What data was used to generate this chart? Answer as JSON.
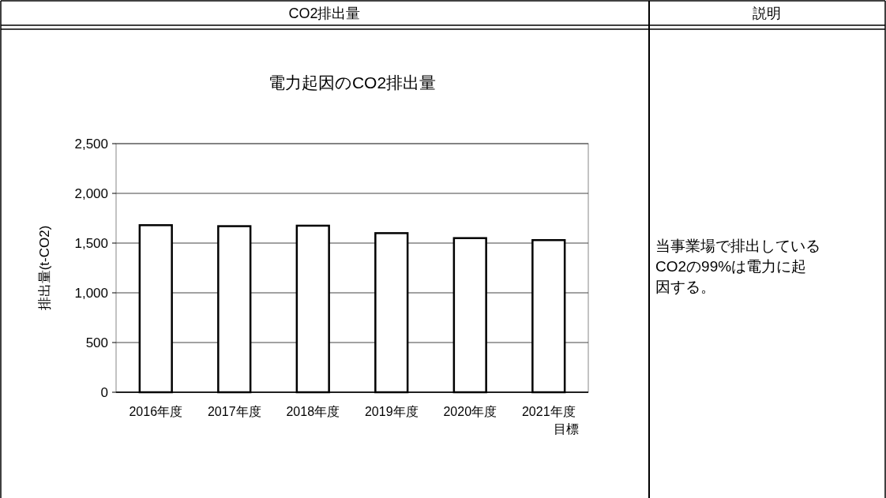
{
  "chart_data": {
    "type": "bar",
    "title": "電力起因のCO2排出量",
    "ylabel": "排出量(t-CO2)",
    "categories": [
      "2016年度",
      "2017年度",
      "2018年度",
      "2019年度",
      "2020年度",
      "2021年度目標"
    ],
    "values": [
      1680,
      1670,
      1675,
      1600,
      1550,
      1530
    ],
    "color": "#ffffff",
    "ylim": [
      0,
      2500
    ],
    "yticks": [
      0,
      500,
      {
        "value": 1000,
        "label": "1,000"
      },
      {
        "value": 1500,
        "label": "1,500"
      },
      {
        "value": 2000,
        "label": "2,000"
      },
      {
        "value": 2500,
        "label": "2,500"
      }
    ],
    "grid": "y",
    "annotations": [
      "CO2排出量",
      "説明",
      "当事業場で排出しているCO2の99%は電力に起因する。"
    ]
  }
}
